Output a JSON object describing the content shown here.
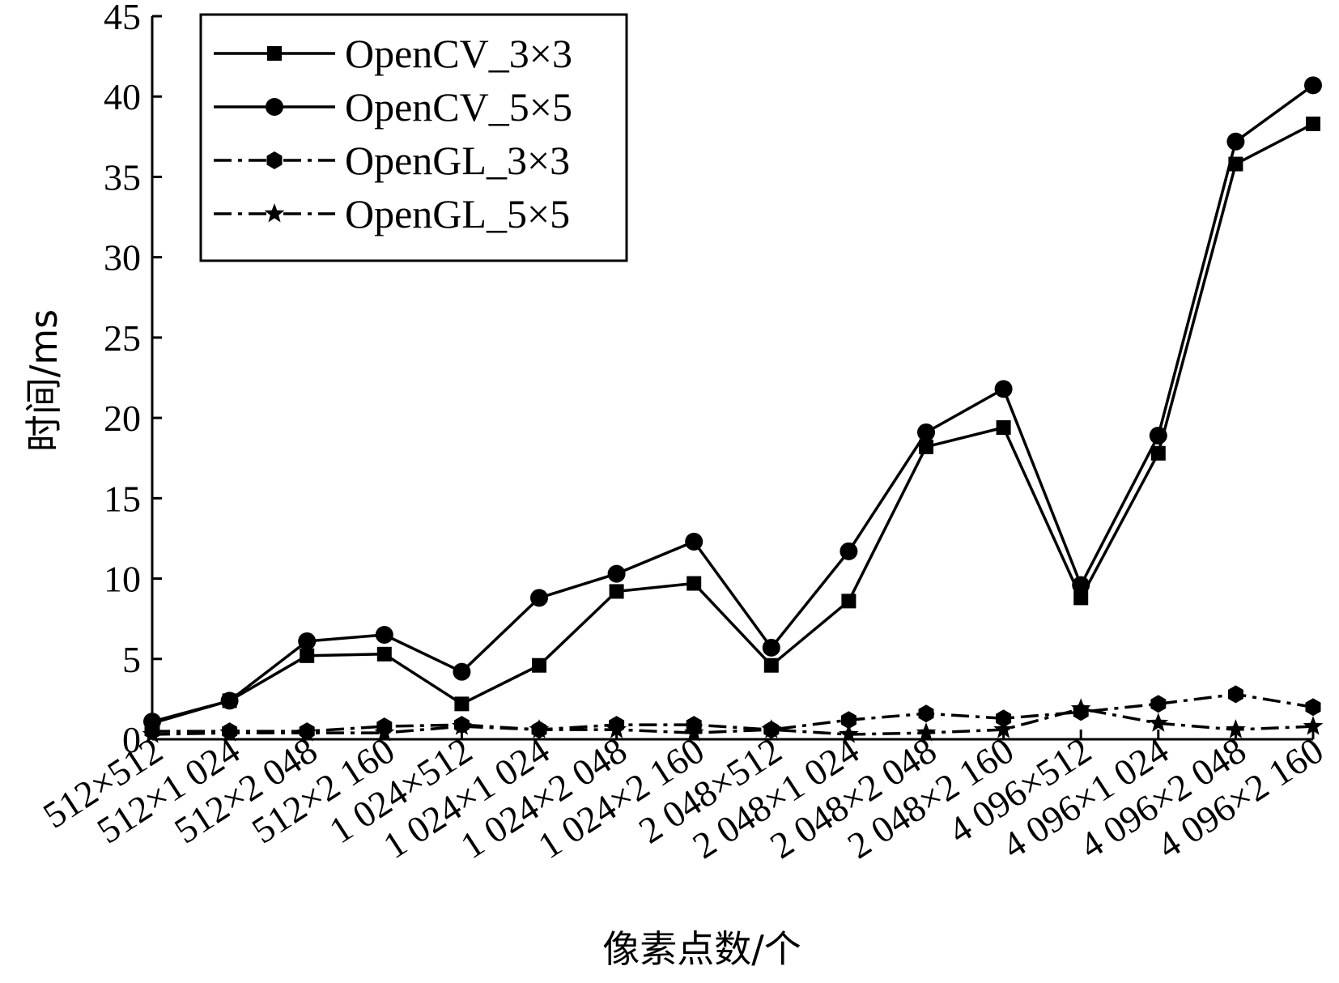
{
  "chart_data": {
    "type": "line",
    "xlabel": "像素点数/个",
    "ylabel": "时间/ms",
    "ylim": [
      0,
      45
    ],
    "yticks": [
      0,
      5,
      10,
      15,
      20,
      25,
      30,
      35,
      40,
      45
    ],
    "grid": false,
    "legend_position": "top-left",
    "categories": [
      "512×512",
      "512×1 024",
      "512×2 048",
      "512×2 160",
      "1 024×512",
      "1 024×1 024",
      "1 024×2 048",
      "1 024×2 160",
      "2 048×512",
      "2 048×1 024",
      "2 048×2 048",
      "2 048×2 160",
      "4 096×512",
      "4 096×1 024",
      "4 096×2 048",
      "4 096×2 160"
    ],
    "series": [
      {
        "name": "OpenCV_3×3",
        "marker": "square",
        "line": "solid",
        "values": [
          1.0,
          2.4,
          5.2,
          5.3,
          2.2,
          4.6,
          9.2,
          9.7,
          4.6,
          8.6,
          18.2,
          19.4,
          8.8,
          17.8,
          35.8,
          38.3
        ]
      },
      {
        "name": "OpenCV_5×5",
        "marker": "circle",
        "line": "solid",
        "values": [
          1.1,
          2.4,
          6.1,
          6.5,
          4.2,
          8.8,
          10.3,
          12.3,
          5.7,
          11.7,
          19.1,
          21.8,
          9.6,
          18.9,
          37.2,
          40.7
        ]
      },
      {
        "name": "OpenGL_3×3",
        "marker": "hexagon",
        "line": "dash-dot",
        "values": [
          0.5,
          0.5,
          0.5,
          0.8,
          0.9,
          0.6,
          0.9,
          0.9,
          0.6,
          1.2,
          1.6,
          1.3,
          1.7,
          2.2,
          2.8,
          2.0
        ]
      },
      {
        "name": "OpenGL_5×5",
        "marker": "star",
        "line": "dash-dot",
        "values": [
          0.3,
          0.4,
          0.4,
          0.4,
          0.8,
          0.6,
          0.6,
          0.4,
          0.6,
          0.3,
          0.4,
          0.6,
          1.9,
          1.0,
          0.6,
          0.8
        ]
      }
    ]
  }
}
